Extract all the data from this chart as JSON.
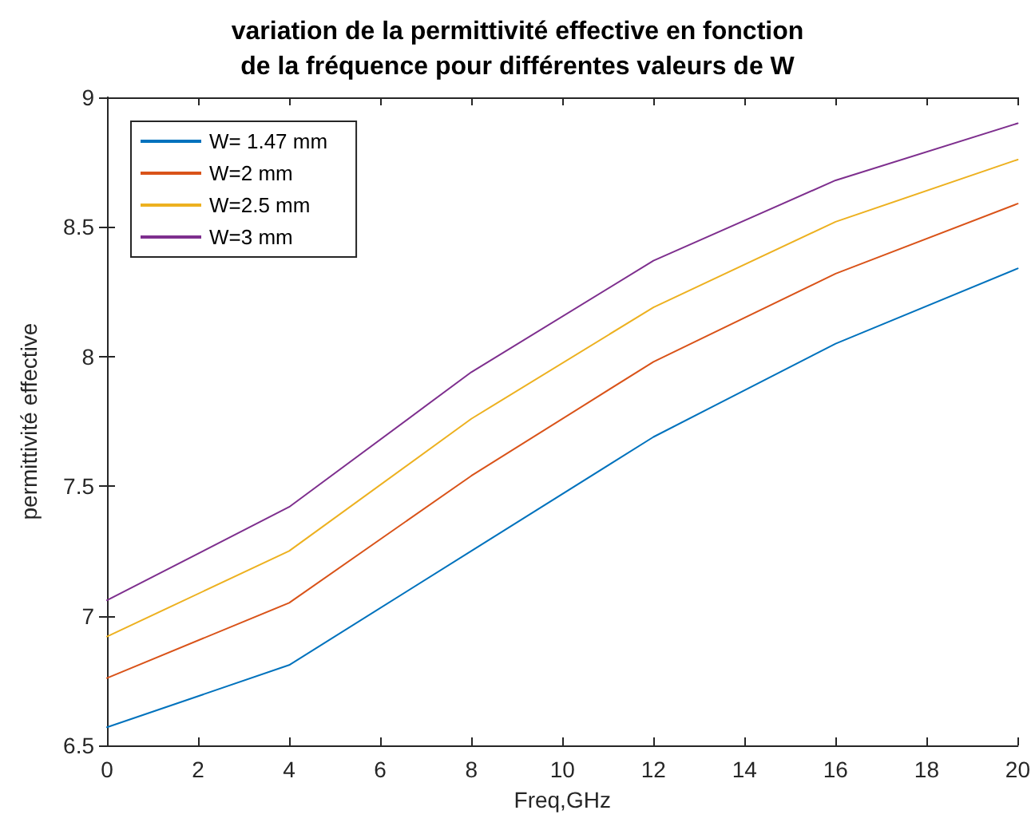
{
  "chart_data": {
    "type": "line",
    "title": "variation de la permittivité effective en fonction\nde la fréquence pour différentes valeurs de W",
    "xlabel": "Freq,GHz",
    "ylabel": "permittivité effective",
    "x": [
      0,
      4,
      8,
      12,
      16,
      20
    ],
    "series": [
      {
        "name": "W= 1.47 mm",
        "color": "#0072bd",
        "values": [
          6.57,
          6.81,
          7.25,
          7.69,
          8.05,
          8.34
        ]
      },
      {
        "name": "W=2 mm",
        "color": "#d95319",
        "values": [
          6.76,
          7.05,
          7.54,
          7.98,
          8.32,
          8.59
        ]
      },
      {
        "name": "W=2.5 mm",
        "color": "#edb120",
        "values": [
          6.92,
          7.25,
          7.76,
          8.19,
          8.52,
          8.76
        ]
      },
      {
        "name": "W=3 mm",
        "color": "#7e2f8e",
        "values": [
          7.06,
          7.42,
          7.94,
          8.37,
          8.68,
          8.9
        ]
      }
    ],
    "xlim": [
      0,
      20
    ],
    "xticks": [
      0,
      2,
      4,
      6,
      8,
      10,
      12,
      14,
      16,
      18,
      20
    ],
    "ylim": [
      6.5,
      9
    ],
    "yticks": [
      6.5,
      7,
      7.5,
      8,
      8.5,
      9
    ],
    "grid": false,
    "legend": "top left",
    "marker": "none",
    "line_style": "solid"
  }
}
